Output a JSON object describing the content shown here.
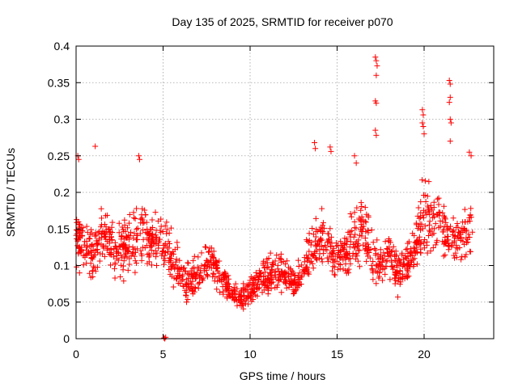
{
  "chart_data": {
    "type": "scatter",
    "title": "Day 135 of 2025, SRMTID for receiver p070",
    "xlabel": "GPS time / hours",
    "ylabel": "SRMTID / TECUs",
    "xlim": [
      0,
      24
    ],
    "ylim": [
      0,
      0.4
    ],
    "xticks": [
      0,
      5,
      10,
      15,
      20
    ],
    "xtick_labels": [
      "0",
      "5",
      "10",
      "15",
      "20"
    ],
    "yticks": [
      0,
      0.05,
      0.1,
      0.15,
      0.2,
      0.25,
      0.3,
      0.35,
      0.4
    ],
    "ytick_labels": [
      "0",
      "0.05",
      "0.1",
      "0.15",
      "0.2",
      "0.25",
      "0.3",
      "0.35",
      "0.4"
    ],
    "grid": true,
    "marker": "plus",
    "colors": {
      "series": "#ff0000",
      "frame": "#000000",
      "grid": "#a0a0a0"
    },
    "series": [
      {
        "name": "SRMTID",
        "trend": {
          "x": [
            0,
            0.5,
            1,
            1.5,
            2,
            2.5,
            3,
            3.5,
            4,
            4.5,
            5,
            5.5,
            6,
            6.5,
            7,
            7.5,
            8,
            8.5,
            9,
            9.5,
            10,
            10.5,
            11,
            11.5,
            12,
            12.5,
            13,
            13.5,
            14,
            14.5,
            15,
            15.5,
            16,
            16.5,
            17,
            17.5,
            18,
            18.5,
            19,
            19.5,
            20,
            20.5,
            21,
            21.5,
            22,
            22.5,
            22.8
          ],
          "y": [
            0.14,
            0.13,
            0.12,
            0.14,
            0.13,
            0.12,
            0.13,
            0.14,
            0.14,
            0.13,
            0.13,
            0.11,
            0.09,
            0.08,
            0.08,
            0.1,
            0.1,
            0.08,
            0.06,
            0.055,
            0.065,
            0.08,
            0.085,
            0.09,
            0.09,
            0.08,
            0.09,
            0.12,
            0.14,
            0.13,
            0.11,
            0.12,
            0.14,
            0.15,
            0.12,
            0.1,
            0.11,
            0.09,
            0.1,
            0.12,
            0.17,
            0.16,
            0.15,
            0.14,
            0.13,
            0.15,
            0.16
          ],
          "spread": [
            0.05,
            0.06,
            0.06,
            0.05,
            0.05,
            0.05,
            0.05,
            0.06,
            0.05,
            0.05,
            0.05,
            0.045,
            0.04,
            0.04,
            0.04,
            0.04,
            0.04,
            0.03,
            0.025,
            0.025,
            0.03,
            0.03,
            0.035,
            0.035,
            0.035,
            0.03,
            0.035,
            0.05,
            0.06,
            0.055,
            0.04,
            0.045,
            0.06,
            0.06,
            0.05,
            0.04,
            0.04,
            0.04,
            0.04,
            0.05,
            0.07,
            0.06,
            0.05,
            0.05,
            0.05,
            0.05,
            0.05
          ],
          "points": 1500
        },
        "peaks": [
          {
            "x": 0.1,
            "y": 0.25
          },
          {
            "x": 0.15,
            "y": 0.245
          },
          {
            "x": 1.1,
            "y": 0.263
          },
          {
            "x": 3.6,
            "y": 0.25
          },
          {
            "x": 3.65,
            "y": 0.245
          },
          {
            "x": 13.7,
            "y": 0.268
          },
          {
            "x": 13.75,
            "y": 0.26
          },
          {
            "x": 14.6,
            "y": 0.262
          },
          {
            "x": 14.65,
            "y": 0.256
          },
          {
            "x": 16.0,
            "y": 0.25
          },
          {
            "x": 16.1,
            "y": 0.24
          },
          {
            "x": 17.2,
            "y": 0.385
          },
          {
            "x": 17.25,
            "y": 0.38
          },
          {
            "x": 17.3,
            "y": 0.373
          },
          {
            "x": 17.25,
            "y": 0.36
          },
          {
            "x": 17.2,
            "y": 0.325
          },
          {
            "x": 17.25,
            "y": 0.322
          },
          {
            "x": 17.2,
            "y": 0.285
          },
          {
            "x": 17.25,
            "y": 0.278
          },
          {
            "x": 19.9,
            "y": 0.313
          },
          {
            "x": 19.95,
            "y": 0.306
          },
          {
            "x": 19.9,
            "y": 0.295
          },
          {
            "x": 19.95,
            "y": 0.29
          },
          {
            "x": 20.0,
            "y": 0.28
          },
          {
            "x": 21.45,
            "y": 0.353
          },
          {
            "x": 21.5,
            "y": 0.348
          },
          {
            "x": 21.5,
            "y": 0.33
          },
          {
            "x": 21.45,
            "y": 0.323
          },
          {
            "x": 21.5,
            "y": 0.3
          },
          {
            "x": 21.55,
            "y": 0.295
          },
          {
            "x": 21.5,
            "y": 0.27
          },
          {
            "x": 22.6,
            "y": 0.255
          },
          {
            "x": 22.7,
            "y": 0.25
          },
          {
            "x": 5.05,
            "y": 0.001
          },
          {
            "x": 5.1,
            "y": 0.0
          },
          {
            "x": 5.15,
            "y": 0.002
          }
        ]
      }
    ]
  }
}
